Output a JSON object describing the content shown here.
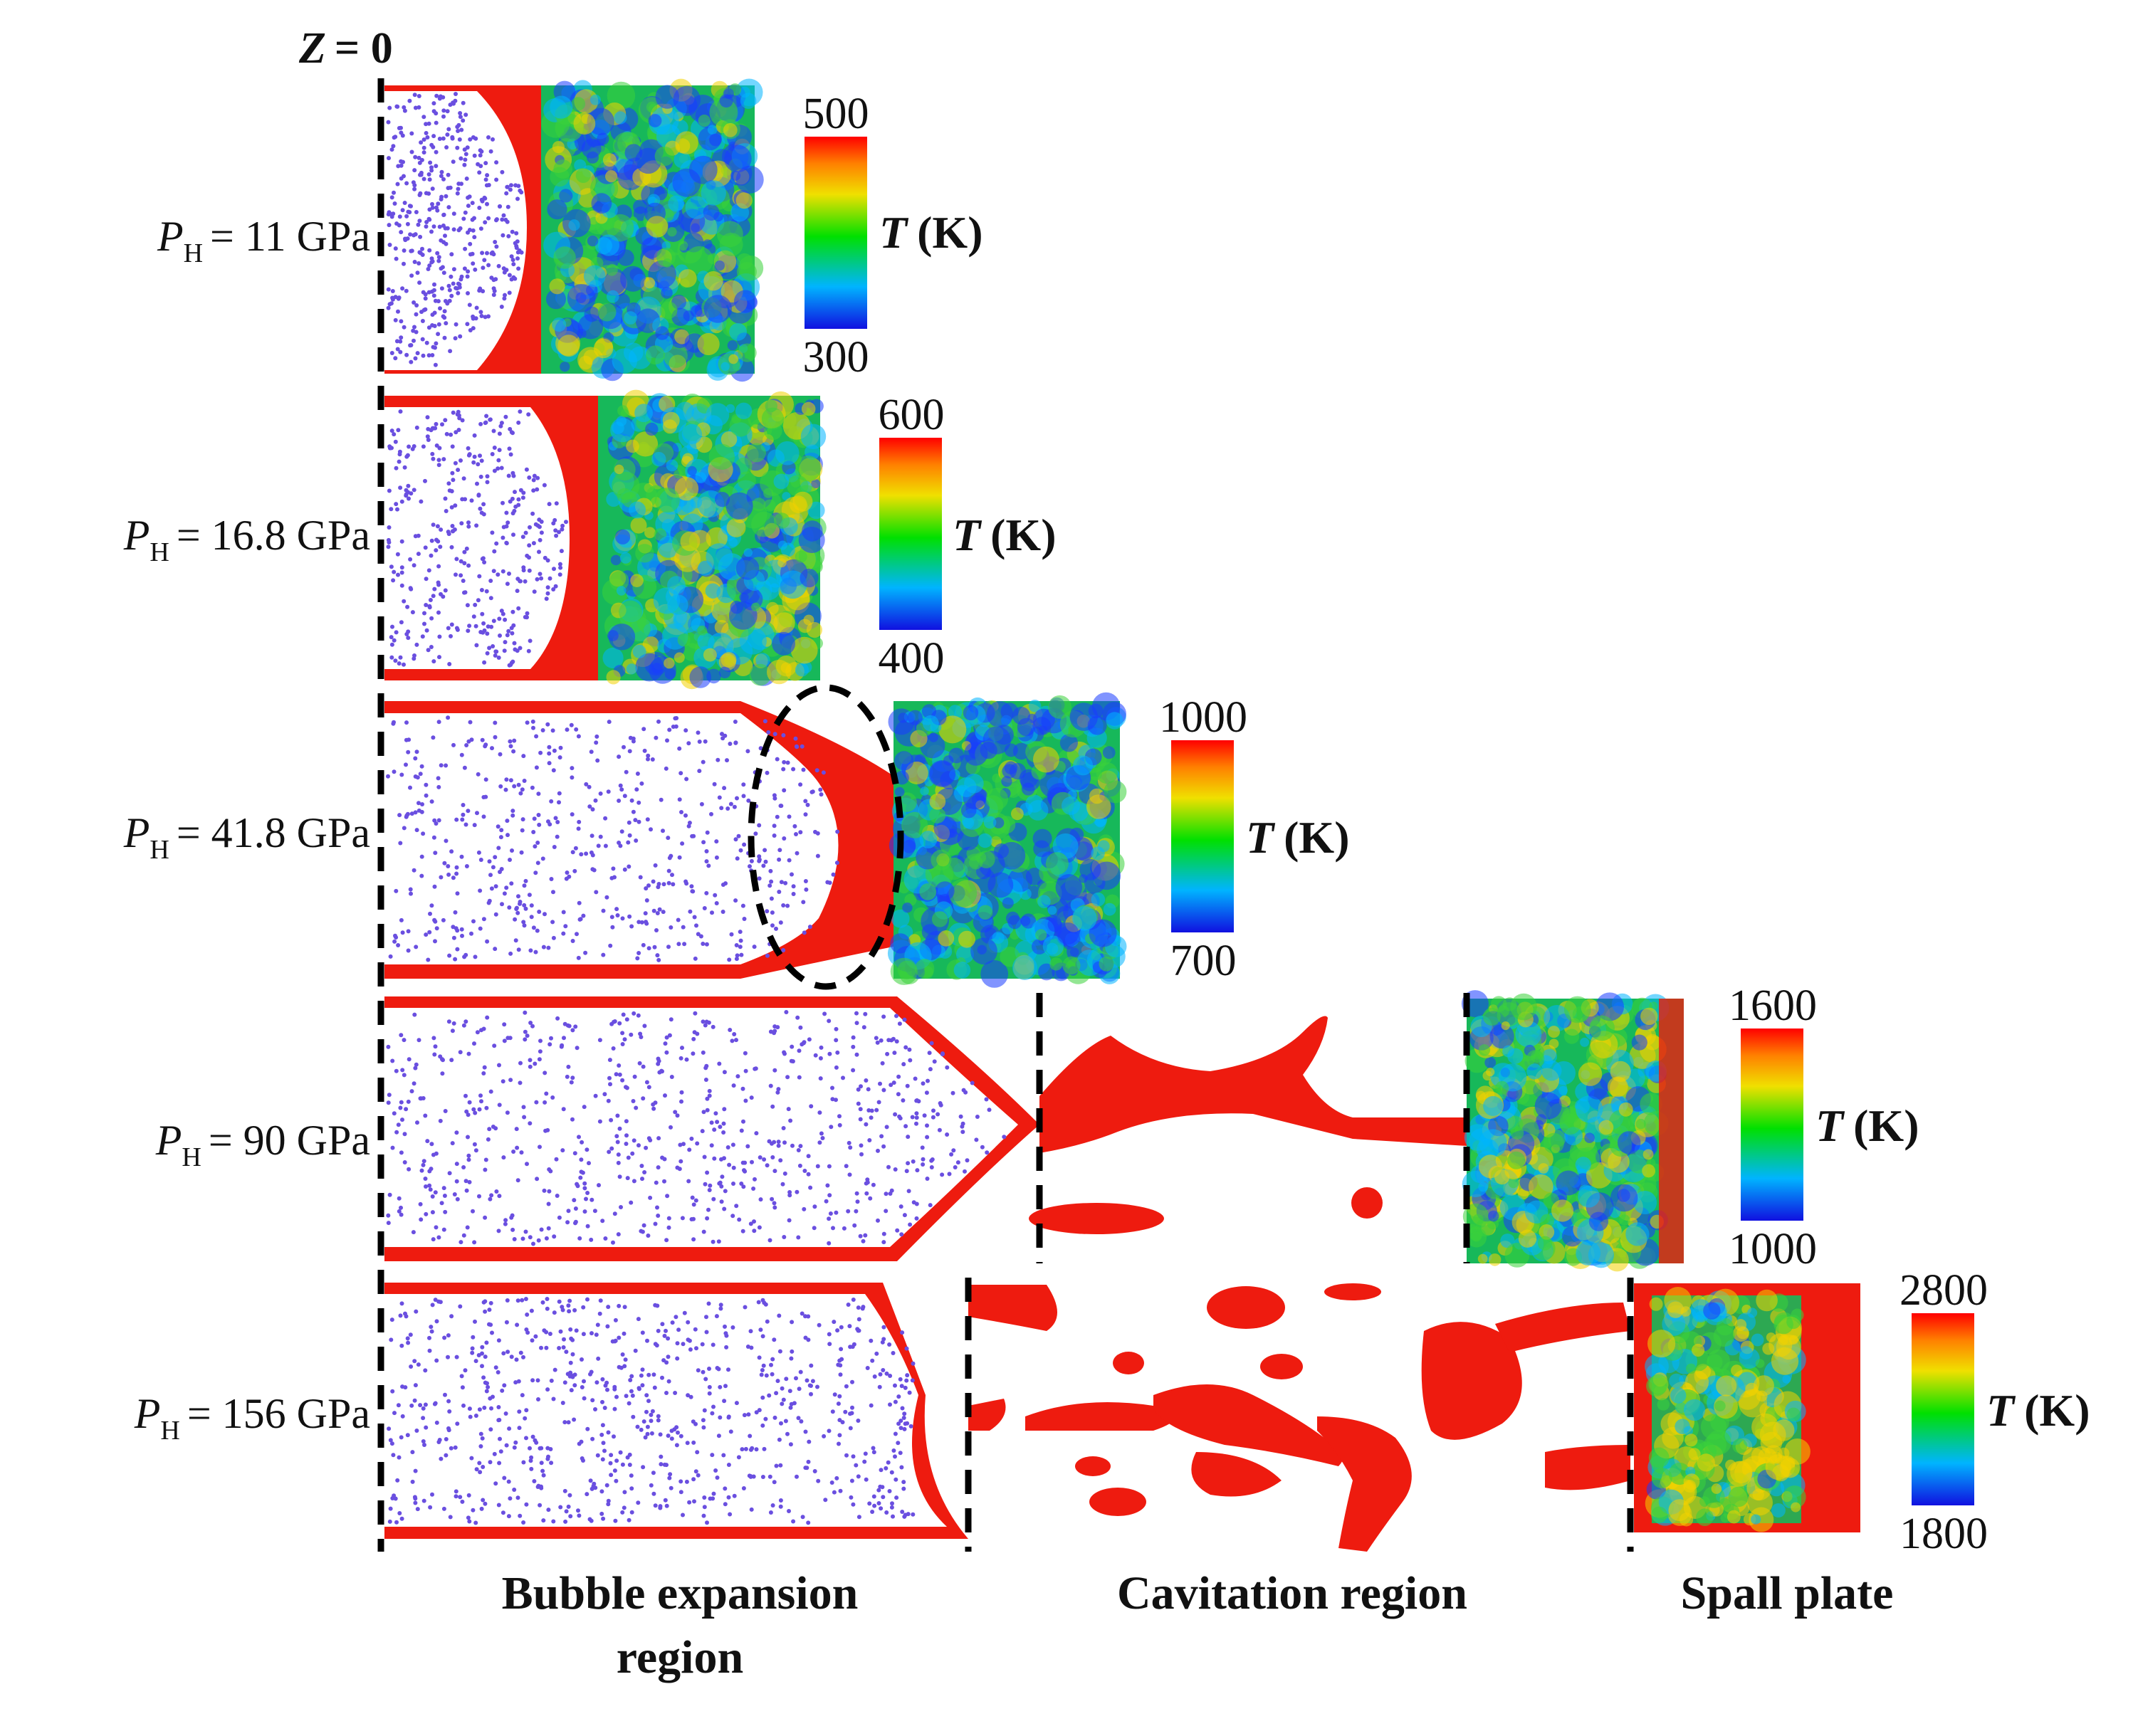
{
  "z_label": "Z",
  "z_value": "= 0",
  "panels": [
    {
      "p_symbol": "P",
      "p_sub": "H",
      "p_value": "= 11 GPa",
      "cb_max": "500",
      "cb_min": "300",
      "cb_t": "T",
      "cb_unit": "(K)"
    },
    {
      "p_symbol": "P",
      "p_sub": "H",
      "p_value": "= 16.8 GPa",
      "cb_max": "600",
      "cb_min": "400",
      "cb_t": "T",
      "cb_unit": "(K)"
    },
    {
      "p_symbol": "P",
      "p_sub": "H",
      "p_value": "= 41.8 GPa",
      "cb_max": "1000",
      "cb_min": "700",
      "cb_t": "T",
      "cb_unit": "(K)"
    },
    {
      "p_symbol": "P",
      "p_sub": "H",
      "p_value": "= 90 GPa",
      "cb_max": "1600",
      "cb_min": "1000",
      "cb_t": "T",
      "cb_unit": "(K)"
    },
    {
      "p_symbol": "P",
      "p_sub": "H",
      "p_value": "= 156 GPa",
      "cb_max": "2800",
      "cb_min": "1800",
      "cb_t": "T",
      "cb_unit": "(K)"
    }
  ],
  "regions": {
    "bubble_line1": "Bubble expansion",
    "bubble_line2": "region",
    "cavitation": "Cavitation region",
    "spall": "Spall plate"
  },
  "colors": {
    "hot": "#ee1b0f",
    "bubble_dots": "#6a4fe0",
    "colorbar": [
      "#1010e0",
      "#00b4ff",
      "#00e000",
      "#f0e000",
      "#ff8000",
      "#ff0000"
    ]
  }
}
